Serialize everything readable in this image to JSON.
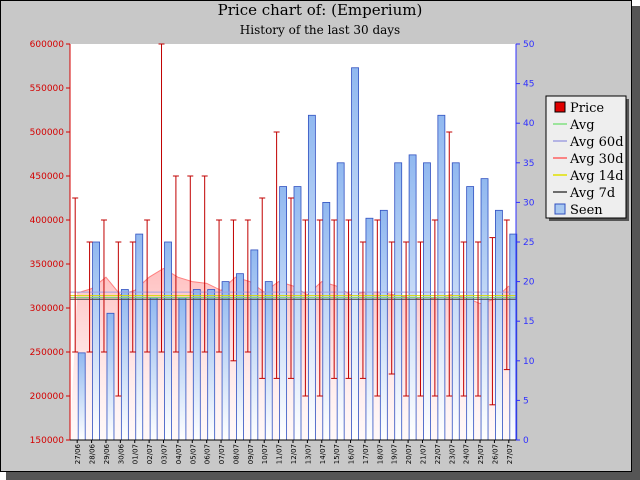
{
  "title": "Price chart of: (Emperium)",
  "subtitle": "History of the last 30 days",
  "chart_data": {
    "type": "bar",
    "x": [
      "27/06",
      "28/06",
      "29/06",
      "30/06",
      "01/07",
      "02/07",
      "03/07",
      "04/07",
      "05/07",
      "06/07",
      "07/07",
      "08/07",
      "09/07",
      "10/07",
      "11/07",
      "12/07",
      "13/07",
      "14/07",
      "15/07",
      "16/07",
      "17/07",
      "18/07",
      "19/07",
      "20/07",
      "21/07",
      "22/07",
      "23/07",
      "24/07",
      "25/07",
      "26/07",
      "27/07"
    ],
    "y_left_ticks": [
      "150000",
      "200000",
      "250000",
      "300000",
      "350000",
      "400000",
      "450000",
      "500000",
      "550000",
      "600000"
    ],
    "y_right_ticks": [
      "0",
      "5",
      "10",
      "15",
      "20",
      "25",
      "30",
      "35",
      "40",
      "45",
      "50"
    ],
    "y_left_range": [
      150000,
      600000
    ],
    "y_right_range": [
      0,
      50
    ],
    "seen": [
      11,
      25,
      16,
      19,
      26,
      18,
      25,
      18,
      19,
      19,
      20,
      21,
      24,
      20,
      32,
      32,
      41,
      30,
      35,
      47,
      28,
      29,
      35,
      36,
      35,
      41,
      35,
      32,
      33,
      29,
      26
    ],
    "price_low": [
      250000,
      250000,
      250000,
      200000,
      250000,
      250000,
      250000,
      250000,
      250000,
      250000,
      250000,
      240000,
      250000,
      220000,
      220000,
      220000,
      200000,
      200000,
      220000,
      220000,
      220000,
      200000,
      225000,
      200000,
      200000,
      200000,
      200000,
      200000,
      200000,
      190000,
      230000
    ],
    "price_high": [
      425000,
      375000,
      400000,
      375000,
      375000,
      400000,
      600000,
      450000,
      450000,
      450000,
      400000,
      400000,
      400000,
      425000,
      500000,
      425000,
      400000,
      400000,
      400000,
      400000,
      375000,
      400000,
      375000,
      375000,
      375000,
      400000,
      500000,
      375000,
      375000,
      380000,
      400000
    ],
    "avg_30d": [
      317000,
      322000,
      335000,
      315000,
      320000,
      335000,
      345000,
      335000,
      330000,
      328000,
      320000,
      335000,
      330000,
      318000,
      330000,
      325000,
      315000,
      330000,
      325000,
      315000,
      318000,
      318000,
      315000,
      312000,
      310000,
      312000,
      315000,
      312000,
      305000,
      310000,
      325000
    ],
    "avg_60d": 318000,
    "avg_7d": 310000,
    "avg_14d": 314000,
    "avg": 312000,
    "legend": [
      {
        "label": "Price",
        "color": "#e00000"
      },
      {
        "label": "Avg",
        "color": "#80e080"
      },
      {
        "label": "Avg 60d",
        "color": "#a0a0e0"
      },
      {
        "label": "Avg 30d",
        "color": "#ff6060"
      },
      {
        "label": "Avg 14d",
        "color": "#e0e000"
      },
      {
        "label": "Avg 7d",
        "color": "#404040"
      },
      {
        "label": "Seen",
        "color": "#a8c8f0"
      }
    ],
    "legend_position": "right"
  }
}
